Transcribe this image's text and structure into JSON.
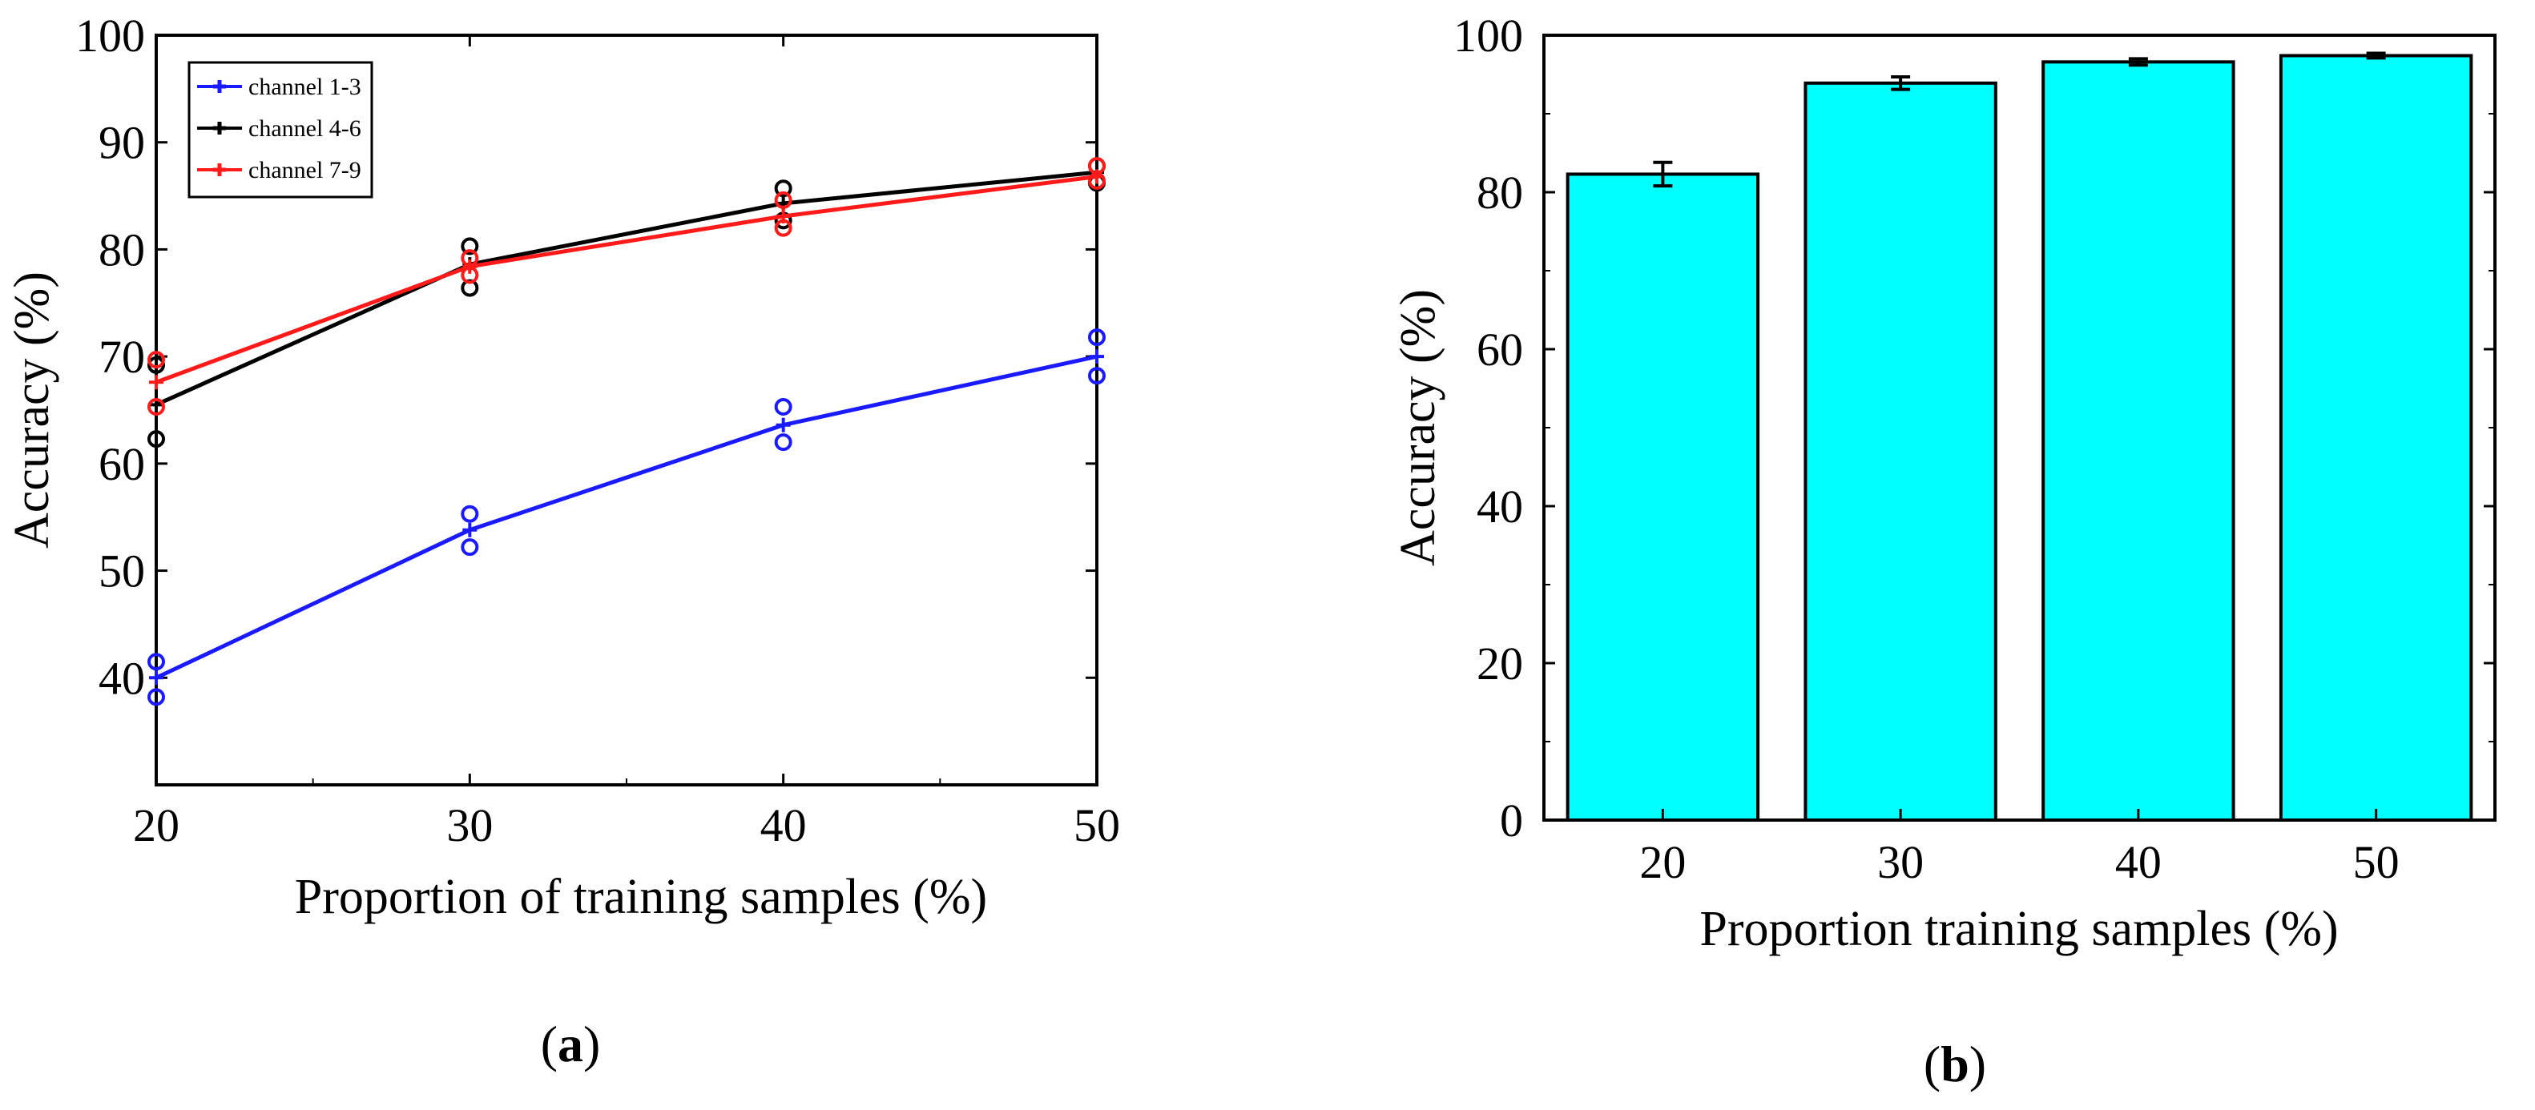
{
  "chart_data": [
    {
      "type": "line",
      "panel_label": "a",
      "xlabel": "Proportion of training samples (%)",
      "ylabel": "Accuracy (%)",
      "xlim": [
        20,
        50
      ],
      "ylim": [
        30,
        100
      ],
      "x": [
        20,
        30,
        40,
        50
      ],
      "xticks": [
        20,
        30,
        40,
        50
      ],
      "yticks": [
        40,
        50,
        60,
        70,
        80,
        90,
        100
      ],
      "legend_position": "top-left",
      "series": [
        {
          "name": "channel 1-3",
          "color": "#1a1aff",
          "values": [
            40,
            53.8,
            63.6,
            70
          ],
          "upper": [
            41.5,
            55.3,
            65.3,
            71.8
          ],
          "lower": [
            38.2,
            52.2,
            62,
            68.2
          ]
        },
        {
          "name": "channel 4-6",
          "color": "#000000",
          "values": [
            65.5,
            78.6,
            84.3,
            87.2
          ],
          "upper": [
            69.2,
            80.3,
            85.7,
            87.8
          ],
          "lower": [
            62.3,
            76.4,
            82.7,
            86.2
          ]
        },
        {
          "name": "channel 7-9",
          "color": "#ff1a1a",
          "values": [
            67.6,
            78.4,
            83.1,
            86.8
          ],
          "upper": [
            69.7,
            79.2,
            84.6,
            87.8
          ],
          "lower": [
            65.3,
            77.6,
            82,
            86.4
          ]
        }
      ]
    },
    {
      "type": "bar",
      "panel_label": "b",
      "xlabel": "Proportion training samples (%)",
      "ylabel": "Accuracy (%)",
      "ylim": [
        0,
        100
      ],
      "yticks": [
        0,
        20,
        40,
        60,
        80,
        100
      ],
      "categories": [
        "20",
        "30",
        "40",
        "50"
      ],
      "bar_color": "#00ffff",
      "values": [
        82.3,
        93.9,
        96.6,
        97.4
      ],
      "errors": [
        1.5,
        0.8,
        0.4,
        0.3
      ]
    }
  ]
}
